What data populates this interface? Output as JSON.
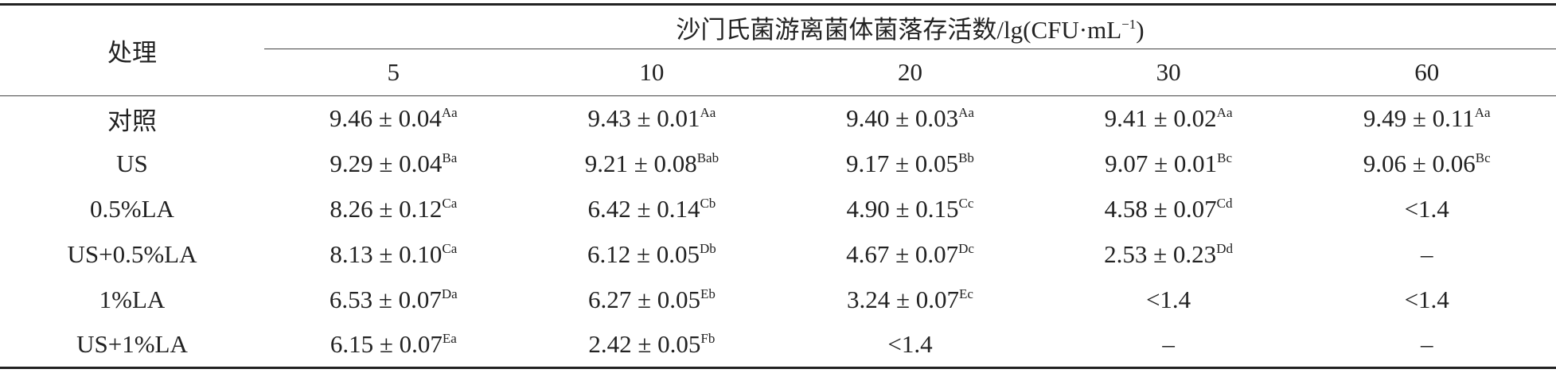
{
  "table": {
    "header": {
      "row_label": "处理",
      "group": {
        "text": "沙门氏菌游离菌体菌落存活数/lg(CFU·mL",
        "sup": "−1",
        "tail": ")"
      },
      "columns": [
        "5",
        "10",
        "20",
        "30",
        "60"
      ]
    },
    "rows": [
      {
        "label": "对照",
        "cells": [
          {
            "text": "9.46 ± 0.04",
            "sup": "Aa"
          },
          {
            "text": "9.43 ± 0.01",
            "sup": "Aa"
          },
          {
            "text": "9.40 ± 0.03",
            "sup": "Aa"
          },
          {
            "text": "9.41 ± 0.02",
            "sup": "Aa"
          },
          {
            "text": "9.49 ± 0.11",
            "sup": "Aa"
          }
        ]
      },
      {
        "label": "US",
        "cells": [
          {
            "text": "9.29 ± 0.04",
            "sup": "Ba"
          },
          {
            "text": "9.21 ± 0.08",
            "sup": "Bab"
          },
          {
            "text": "9.17 ± 0.05",
            "sup": "Bb"
          },
          {
            "text": "9.07 ± 0.01",
            "sup": "Bc"
          },
          {
            "text": "9.06 ± 0.06",
            "sup": "Bc"
          }
        ]
      },
      {
        "label": "0.5%LA",
        "cells": [
          {
            "text": "8.26 ± 0.12",
            "sup": "Ca"
          },
          {
            "text": "6.42 ± 0.14",
            "sup": "Cb"
          },
          {
            "text": "4.90 ± 0.15",
            "sup": "Cc"
          },
          {
            "text": "4.58 ± 0.07",
            "sup": "Cd"
          },
          {
            "text": "<1.4"
          }
        ]
      },
      {
        "label": "US+0.5%LA",
        "cells": [
          {
            "text": "8.13 ± 0.10",
            "sup": "Ca"
          },
          {
            "text": "6.12 ± 0.05",
            "sup": "Db"
          },
          {
            "text": "4.67 ± 0.07",
            "sup": "Dc"
          },
          {
            "text": "2.53 ± 0.23",
            "sup": "Dd"
          },
          {
            "text": "–"
          }
        ]
      },
      {
        "label": "1%LA",
        "cells": [
          {
            "text": "6.53 ± 0.07",
            "sup": "Da"
          },
          {
            "text": "6.27 ± 0.05",
            "sup": "Eb"
          },
          {
            "text": "3.24 ± 0.07",
            "sup": "Ec"
          },
          {
            "text": "<1.4"
          },
          {
            "text": "<1.4"
          }
        ]
      },
      {
        "label": "US+1%LA",
        "cells": [
          {
            "text": "6.15 ± 0.07",
            "sup": "Ea"
          },
          {
            "text": "2.42 ± 0.05",
            "sup": "Fb"
          },
          {
            "text": "<1.4"
          },
          {
            "text": "–"
          },
          {
            "text": "–"
          }
        ]
      }
    ]
  }
}
